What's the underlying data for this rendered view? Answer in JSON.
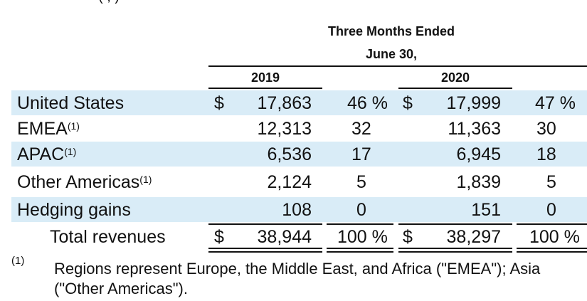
{
  "partial_top_text": "(                      ,                       )",
  "header": {
    "period_line1": "Three Months Ended",
    "period_line2": "June 30,",
    "year_2019": "2019",
    "year_2020": "2020"
  },
  "rows": [
    {
      "label": "United States",
      "sup": "",
      "dollar_2019": "$",
      "amount_2019": "17,863",
      "pct_2019": "46 %",
      "dollar_2020": "$",
      "amount_2020": "17,999",
      "pct_2020": "47 %"
    },
    {
      "label": "EMEA",
      "sup": "(1)",
      "dollar_2019": "",
      "amount_2019": "12,313",
      "pct_2019": "32",
      "dollar_2020": "",
      "amount_2020": "11,363",
      "pct_2020": "30"
    },
    {
      "label": "APAC",
      "sup": "(1)",
      "dollar_2019": "",
      "amount_2019": "6,536",
      "pct_2019": "17",
      "dollar_2020": "",
      "amount_2020": "6,945",
      "pct_2020": "18"
    },
    {
      "label": "Other Americas",
      "sup": "(1)",
      "dollar_2019": "",
      "amount_2019": "2,124",
      "pct_2019": "5",
      "dollar_2020": "",
      "amount_2020": "1,839",
      "pct_2020": "5"
    },
    {
      "label": "Hedging gains",
      "sup": "",
      "dollar_2019": "",
      "amount_2019": "108",
      "pct_2019": "0",
      "dollar_2020": "",
      "amount_2020": "151",
      "pct_2020": "0"
    }
  ],
  "total": {
    "label": "Total revenues",
    "dollar_2019": "$",
    "amount_2019": "38,944",
    "pct_2019": "100 %",
    "dollar_2020": "$",
    "amount_2020": "38,297",
    "pct_2020": "100 %"
  },
  "footnote": {
    "marker": "(1)",
    "line1": "Regions represent Europe, the Middle East, and Africa (\"EMEA\"); Asia",
    "line2": "(\"Other Americas\")."
  }
}
